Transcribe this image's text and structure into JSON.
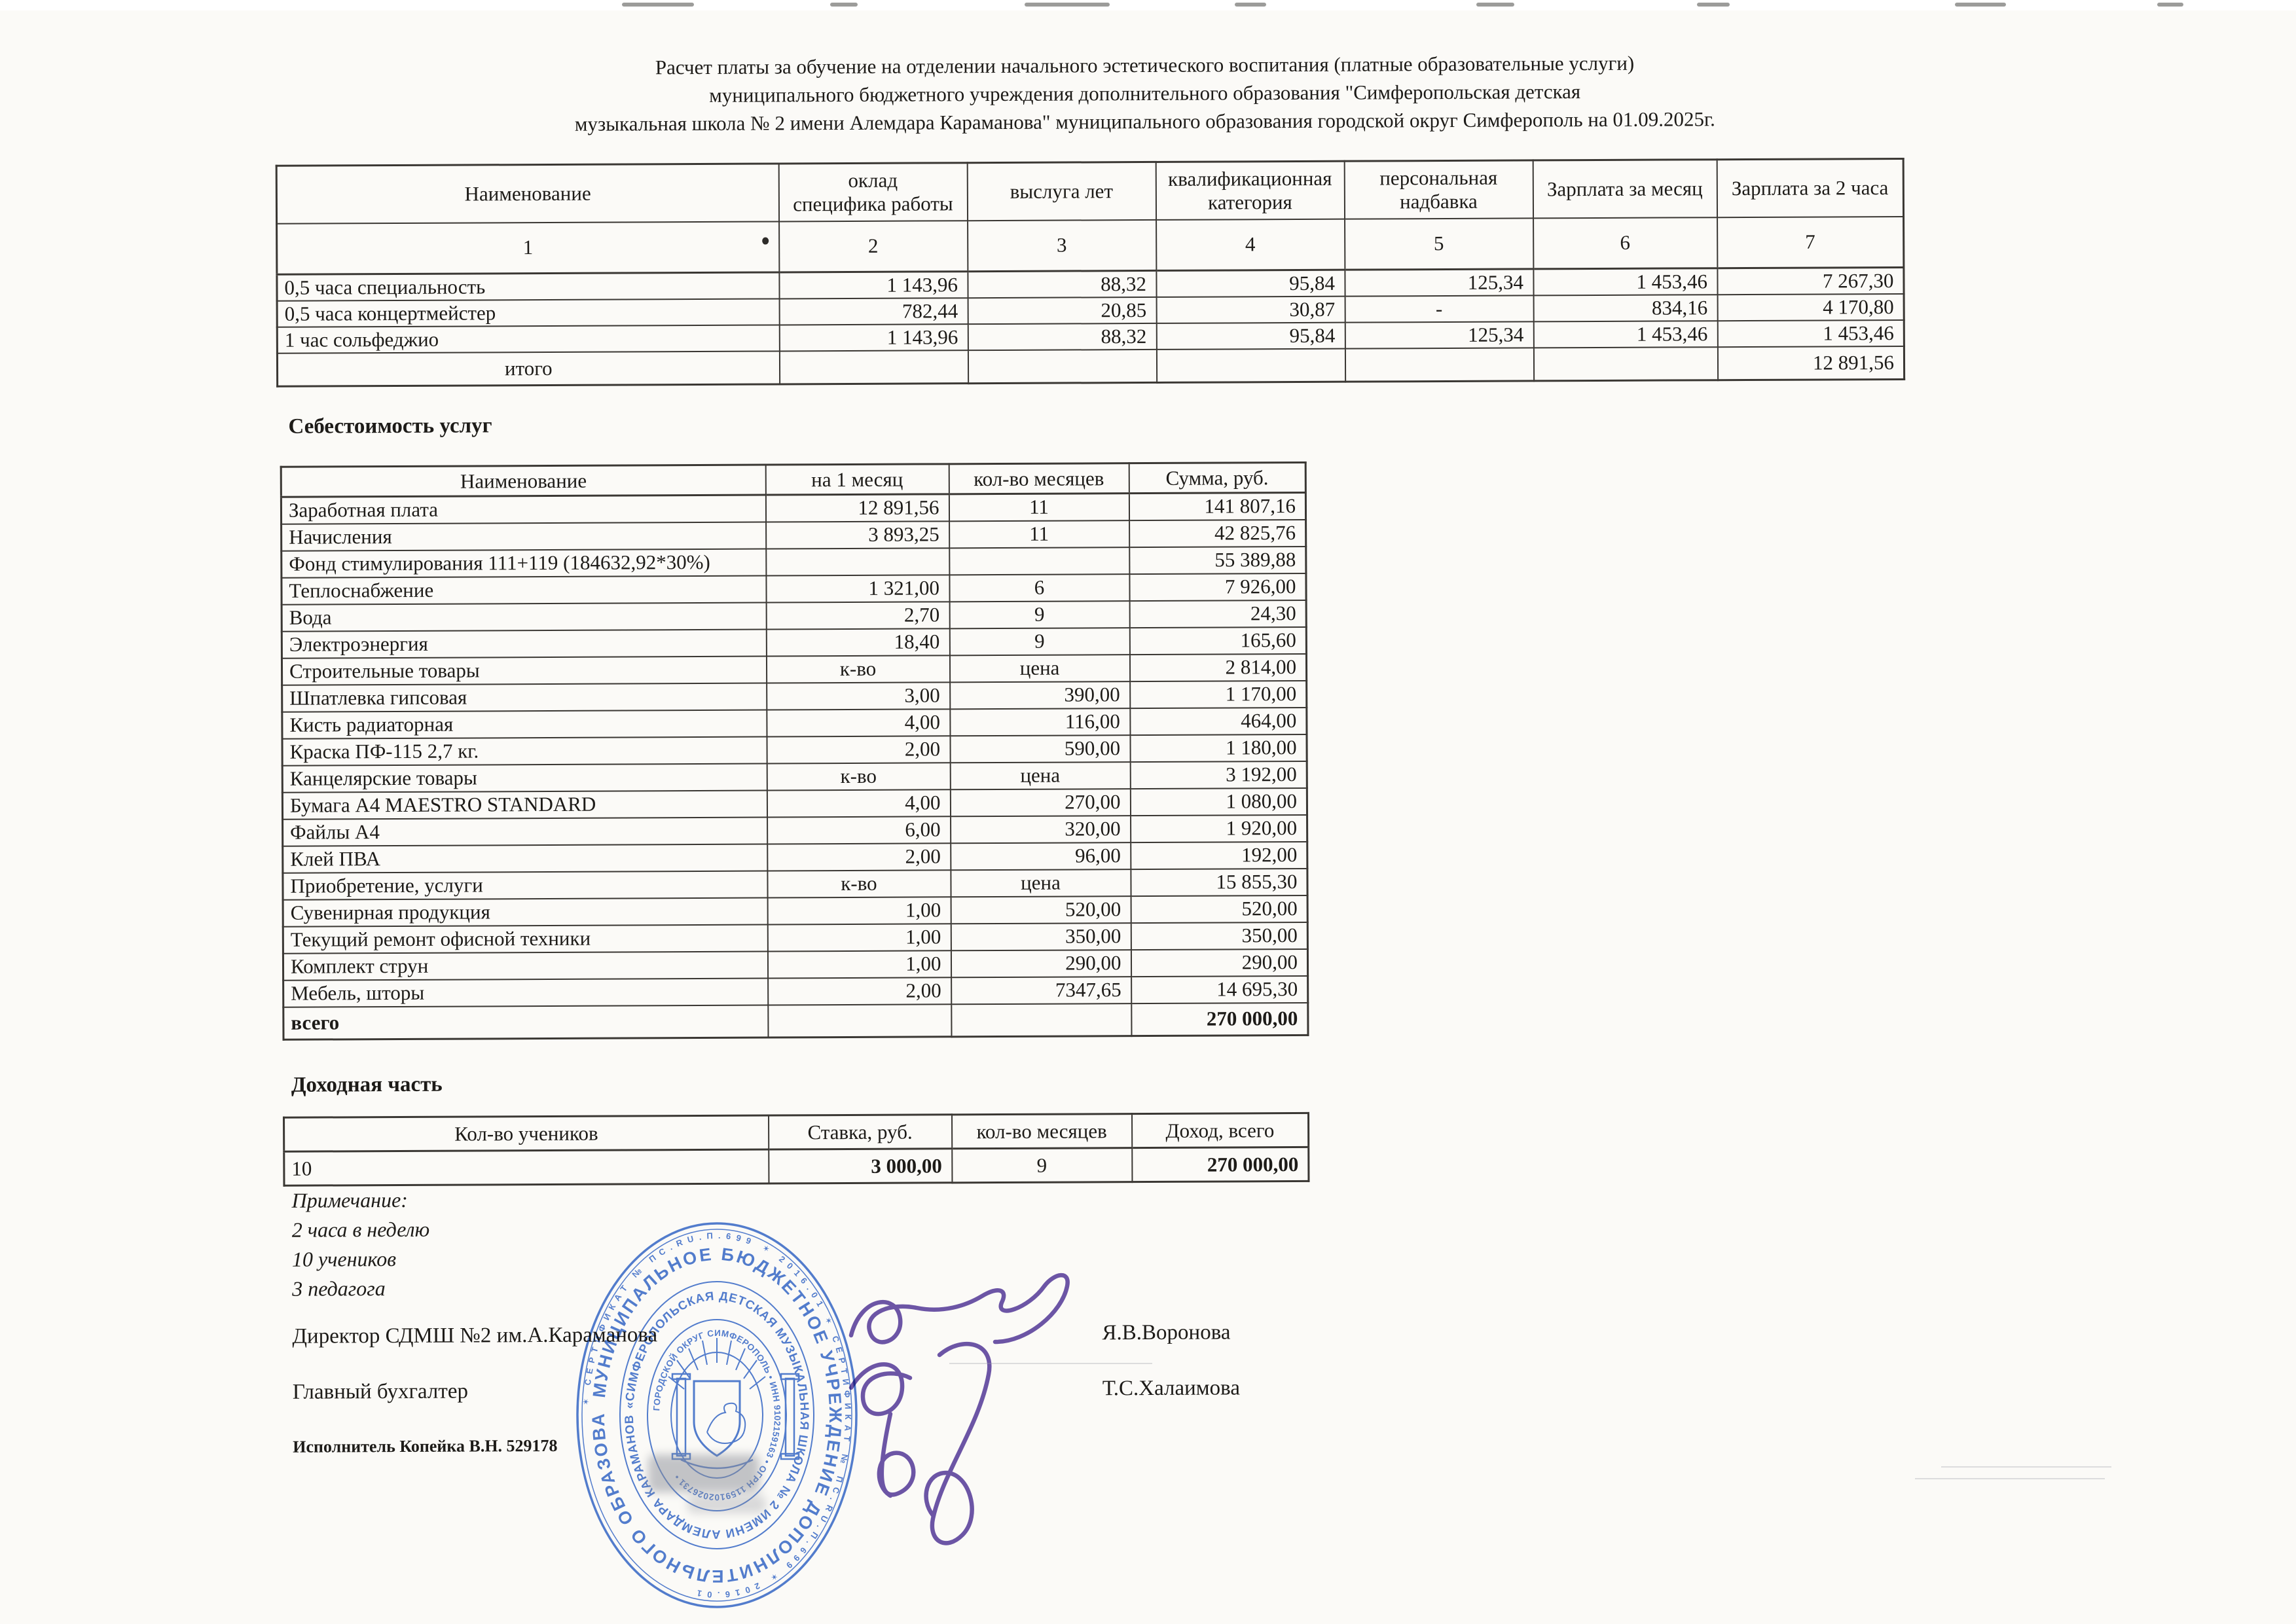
{
  "title": {
    "lines": [
      "Расчет платы за обучение на отделении начального эстетического воспитания (платные образовательные услуги)",
      "муниципального бюджетного учреждения дополнительного образования \"Симферопольская детская",
      "музыкальная школа № 2 имени Алемдара Караманова\" муниципального образования городской округ Симферополь на 01.09.2025г."
    ]
  },
  "table1": {
    "headers": [
      "Наименование",
      "оклад\nспецифика работы",
      "выслуга лет",
      "квалификационная\nкатегория",
      "персональная\nнадбавка",
      "Зарплата за месяц",
      "Зарплата за 2 часа"
    ],
    "number_row": [
      "1",
      "2",
      "3",
      "4",
      "5",
      "6",
      "7"
    ],
    "rows": [
      [
        "0,5 часа специальность",
        "1 143,96",
        "88,32",
        "95,84",
        "125,34",
        "1 453,46",
        "7 267,30"
      ],
      [
        "0,5 часа концертмейстер",
        "782,44",
        "20,85",
        "30,87",
        "-",
        "834,16",
        "4 170,80"
      ],
      [
        "1 час сольфеджио",
        "1 143,96",
        "88,32",
        "95,84",
        "125,34",
        "1 453,46",
        "1 453,46"
      ],
      [
        {
          "t": "итого",
          "a": "c"
        },
        "",
        "",
        "",
        "",
        "",
        "12 891,56"
      ]
    ]
  },
  "cost": {
    "heading": "Себестоимость услуг",
    "headers": [
      "Наименование",
      "на 1 месяц",
      "кол-во месяцев",
      "Сумма, руб."
    ],
    "rows": [
      [
        "Заработная плата",
        "12 891,56",
        "11",
        "141 807,16"
      ],
      [
        "Начисления",
        "3 893,25",
        "11",
        "42 825,76"
      ],
      [
        "Фонд стимулирования 111+119 (184632,92*30%)",
        "",
        "",
        "55 389,88"
      ],
      [
        "Теплоснабжение",
        "1 321,00",
        "6",
        "7 926,00"
      ],
      [
        "Вода",
        "2,70",
        "9",
        "24,30"
      ],
      [
        "Электроэнергия",
        "18,40",
        "9",
        "165,60"
      ],
      [
        "Строительные товары",
        "к-во",
        "цена",
        "2 814,00"
      ],
      [
        "Шпатлевка гипсовая",
        "3,00",
        "390,00",
        "1 170,00"
      ],
      [
        "Кисть радиаторная",
        "4,00",
        "116,00",
        "464,00"
      ],
      [
        "Краска ПФ-115 2,7 кг.",
        "2,00",
        "590,00",
        "1 180,00"
      ],
      [
        "Канцелярские товары",
        "к-во",
        "цена",
        "3 192,00"
      ],
      [
        "Бумага А4 MAESTRO STANDARD",
        "4,00",
        "270,00",
        "1 080,00"
      ],
      [
        "Файлы А4",
        "6,00",
        "320,00",
        "1 920,00"
      ],
      [
        "Клей ПВА",
        "2,00",
        "96,00",
        "192,00"
      ],
      [
        "Приобретение, услуги",
        "к-во",
        "цена",
        "15 855,30"
      ],
      [
        "Сувенирная продукция",
        "1,00",
        "520,00",
        "520,00"
      ],
      [
        "Текущий ремонт офисной техники",
        "1,00",
        "350,00",
        "350,00"
      ],
      [
        "Комплект струн",
        "1,00",
        "290,00",
        "290,00"
      ],
      [
        "Мебель, шторы",
        "2,00",
        "7347,65",
        "14 695,30"
      ],
      [
        {
          "t": "всего",
          "b": true
        },
        "",
        "",
        {
          "t": "270 000,00",
          "b": true
        }
      ]
    ]
  },
  "income": {
    "heading": "Доходная часть",
    "headers": [
      "Кол-во учеников",
      "Ставка, руб.",
      "кол-во месяцев",
      "Доход, всего"
    ],
    "rows": [
      [
        "10",
        {
          "t": "3 000,00",
          "b": true
        },
        "9",
        {
          "t": "270 000,00",
          "b": true
        }
      ]
    ]
  },
  "notes": {
    "label": "Примечание:",
    "lines": [
      "2 часа в неделю",
      "10 учеников",
      "3 педагога"
    ]
  },
  "signature_block": {
    "director_role": "Директор СДМШ №2 им.А.Караманова",
    "director_name": "Я.В.Воронова",
    "accountant_role": "Главный бухгалтер",
    "accountant_name": "Т.С.Халаимова",
    "executor": "Исполнитель Копейка В.Н. 529178"
  },
  "stamp": {
    "ring_cert": "✶ СЕРТИФИКАТ № ПС.RU.П.699 ✶ 2016.01 ✶ СЕРТИФИКАТ № ПС.RU.П.699 ✶ 2016.01",
    "ring1": "МУНИЦИПАЛЬНОЕ БЮДЖЕТНОЕ УЧРЕЖДЕНИЕ ДОПОЛНИТЕЛЬНОГО ОБРАЗОВАНИЯ",
    "ring2": "«СИМФЕРОПОЛЬСКАЯ ДЕТСКАЯ МУЗЫКАЛЬНАЯ ШКОЛА № 2 ИМЕНИ АЛЕМДАРА КАРАМАНОВА»",
    "ring3": "ГОРОДСКОЙ ОКРУГ СИМФЕРОПОЛЬ • ИНН 9102159163 • ОГРН 1159102026731 •"
  },
  "colors": {
    "paper": "#fbfaf7",
    "ink": "#1d1b18",
    "border": "#3a3733",
    "stamp_blue": "#4070cf",
    "signature_purple": "#5a3fa0",
    "smudge": "#8a8d96"
  }
}
